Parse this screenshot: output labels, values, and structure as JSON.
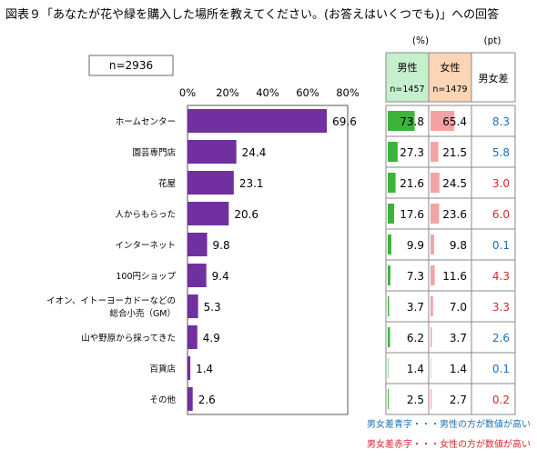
{
  "title": "図表９「あなたが花や緑を購入した場所を教えてください。(お答えはいくつでも)」への回答",
  "colors": {
    "overall_bar": "#7030a0",
    "male_bar": "#3cb43c",
    "female_bar": "#f4a3a3",
    "male_header_bg": "#c6efce",
    "female_header_bg": "#fbd5b5",
    "diff_positive": "#1f6fb5",
    "diff_negative": "#d9262b"
  },
  "chart_data": {
    "type": "bar",
    "orientation": "horizontal",
    "sample_label": "n=2936",
    "xlim": [
      0,
      80
    ],
    "x_ticks": [
      "0%",
      "20%",
      "40%",
      "60%",
      "80%"
    ],
    "categories": [
      [
        "ホームセンター"
      ],
      [
        "園芸専門店"
      ],
      [
        "花屋"
      ],
      [
        "人からもらった"
      ],
      [
        "インターネット"
      ],
      [
        "100円ショップ"
      ],
      [
        "イオン、イトーヨーカドーなどの",
        "総合小売（GM）"
      ],
      [
        "山や野原から採ってきた"
      ],
      [
        "百貨店"
      ],
      [
        "その他"
      ]
    ],
    "values": [
      69.6,
      24.4,
      23.1,
      20.6,
      9.8,
      9.4,
      5.3,
      4.9,
      1.4,
      2.6
    ],
    "table": {
      "unit_pct": "(%)",
      "unit_pt": "(pt)",
      "male_label": "男性",
      "male_n": "n=1457",
      "female_label": "女性",
      "female_n": "n=1479",
      "diff_label": "男女差",
      "male": [
        73.8,
        27.3,
        21.6,
        17.6,
        9.9,
        7.3,
        3.7,
        6.2,
        1.4,
        2.5
      ],
      "female": [
        65.4,
        21.5,
        24.5,
        23.6,
        9.8,
        11.6,
        7.0,
        3.7,
        1.4,
        2.7
      ],
      "diff": [
        8.3,
        5.8,
        3.0,
        6.0,
        0.1,
        4.3,
        3.3,
        2.6,
        0.1,
        0.2
      ],
      "diff_sign": [
        "blue",
        "blue",
        "red",
        "red",
        "blue",
        "red",
        "red",
        "blue",
        "blue",
        "red"
      ]
    },
    "legend_notes": {
      "blue": "男女差青字・・・男性の方が数値が高い",
      "red": "男女差赤字・・・女性の方が数値が高い"
    }
  }
}
